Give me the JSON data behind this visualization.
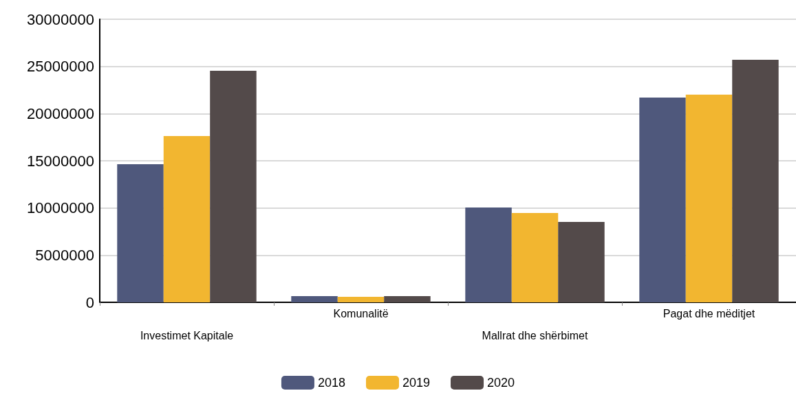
{
  "chart_data": {
    "type": "bar",
    "categories": [
      "Investimet Kapitale",
      "Komunalitë",
      "Mallrat dhe shërbimet",
      "Pagat dhe mëditjet"
    ],
    "series": [
      {
        "name": "2018",
        "color": "#4f587c",
        "values": [
          14640000,
          650000,
          10050000,
          21700000
        ]
      },
      {
        "name": "2019",
        "color": "#f2b630",
        "values": [
          17620000,
          580000,
          9470000,
          22000000
        ]
      },
      {
        "name": "2020",
        "color": "#534a4a",
        "values": [
          24540000,
          650000,
          8520000,
          25710000
        ]
      }
    ],
    "ylim": [
      0,
      30000000
    ],
    "yticks": [
      0,
      5000000,
      10000000,
      15000000,
      20000000,
      25000000,
      30000000
    ],
    "grid": "y",
    "legend": "bottom"
  }
}
